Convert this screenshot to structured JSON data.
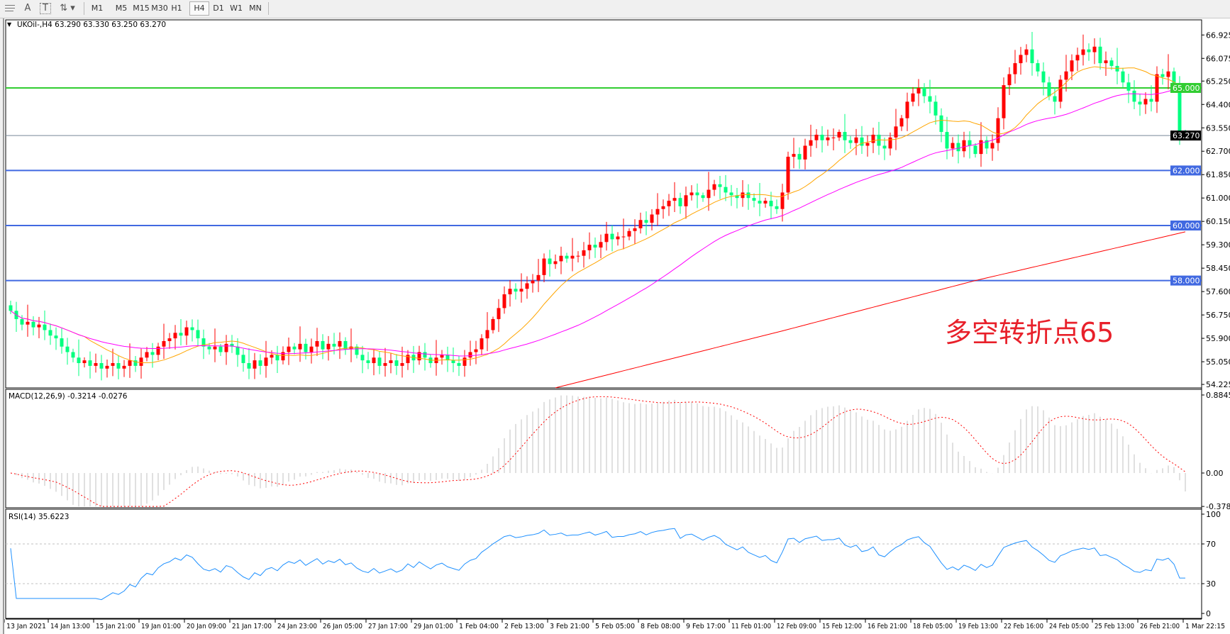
{
  "toolbar": {
    "icons": [
      "period-separators-icon",
      "text-label-icon",
      "text-box-icon",
      "arrows-dropdown-icon"
    ],
    "text_icon_label": "A",
    "textbox_icon_label": "T",
    "timeframes": [
      "M1",
      "M5",
      "M15",
      "M30",
      "H1",
      "H4",
      "D1",
      "W1",
      "MN"
    ],
    "selected": "H4"
  },
  "chart": {
    "header": "UKOil-,H4  63.290 63.330 63.250 63.270",
    "annotation": "多空转折点65",
    "annotation_color": "#e8202a",
    "macd_header": "MACD(12,26,9) -0.3214 -0.0276",
    "rsi_header": "RSI(14) 35.6223"
  },
  "colors": {
    "bull": "#ff0000",
    "bear": "#00ff7f",
    "ma_fast": "#ffa500",
    "ma_mid": "#ff00ff",
    "ma_slow": "#ff0000",
    "level_green": "#32cd32",
    "level_blue": "#4169e1",
    "price_line": "#778899",
    "macd_hist": "#c0c0c0",
    "macd_signal": "#ff0000",
    "rsi": "#1e90ff"
  },
  "chart_data": {
    "type": "candlestick",
    "symbol": "UKOil-",
    "timeframe": "H4",
    "close": [
      56.9,
      56.6,
      56.4,
      56.5,
      56.3,
      56.4,
      56.2,
      56.0,
      55.9,
      55.6,
      55.4,
      55.2,
      55.0,
      55.1,
      54.9,
      55.0,
      54.8,
      54.9,
      55.0,
      54.8,
      54.9,
      55.1,
      54.9,
      55.2,
      55.4,
      55.3,
      55.6,
      55.8,
      55.9,
      56.1,
      56.0,
      56.3,
      56.2,
      55.9,
      55.6,
      55.5,
      55.6,
      55.4,
      55.7,
      55.6,
      55.3,
      55.0,
      54.8,
      55.1,
      54.9,
      55.2,
      55.3,
      55.1,
      55.4,
      55.6,
      55.5,
      55.7,
      55.4,
      55.6,
      55.8,
      55.5,
      55.7,
      55.6,
      55.8,
      55.5,
      55.6,
      55.3,
      55.1,
      55.0,
      55.2,
      54.9,
      55.0,
      55.1,
      54.9,
      55.0,
      55.3,
      55.1,
      55.4,
      55.2,
      55.0,
      55.2,
      55.3,
      55.1,
      55.0,
      54.9,
      55.2,
      55.4,
      55.5,
      55.9,
      56.2,
      56.6,
      57.0,
      57.5,
      57.7,
      57.6,
      57.7,
      57.9,
      58.0,
      58.2,
      58.8,
      58.6,
      58.7,
      58.9,
      58.8,
      58.9,
      58.9,
      59.1,
      59.3,
      59.2,
      59.4,
      59.7,
      59.5,
      59.6,
      59.6,
      59.8,
      59.9,
      60.2,
      60.1,
      60.4,
      60.6,
      60.7,
      60.9,
      61.0,
      60.7,
      61.1,
      61.2,
      61.1,
      61.0,
      61.3,
      61.5,
      61.4,
      61.2,
      61.1,
      61.0,
      61.2,
      61.0,
      60.9,
      60.8,
      60.9,
      60.7,
      60.6,
      61.2,
      62.5,
      62.6,
      62.4,
      62.9,
      63.1,
      63.3,
      63.1,
      63.2,
      63.2,
      63.4,
      63.1,
      63.0,
      63.2,
      62.9,
      63.0,
      63.3,
      62.9,
      62.8,
      63.2,
      63.6,
      63.9,
      64.5,
      64.8,
      65.0,
      64.7,
      64.5,
      64.0,
      63.4,
      62.8,
      63.0,
      62.7,
      63.1,
      62.9,
      62.6,
      63.1,
      62.8,
      63.0,
      63.9,
      65.1,
      65.5,
      65.9,
      66.2,
      66.4,
      65.9,
      65.6,
      65.2,
      64.7,
      64.5,
      65.3,
      65.6,
      66.0,
      66.2,
      66.4,
      66.3,
      66.5,
      65.9,
      66.0,
      65.8,
      65.6,
      65.2,
      64.9,
      64.5,
      64.4,
      64.6,
      64.5,
      65.5,
      65.4,
      65.6,
      65.1,
      63.4,
      63.27
    ],
    "last_quote": {
      "open": 63.29,
      "high": 63.33,
      "low": 63.25,
      "close": 63.27
    },
    "ma_slow_points": [
      [
        96,
        54.1
      ],
      [
        136,
        56.17
      ],
      [
        170,
        58.0
      ],
      [
        207,
        59.77
      ]
    ],
    "horizontal_levels": [
      {
        "value": 65.0,
        "label": "65.000",
        "color": "#32cd32"
      },
      {
        "value": 62.0,
        "label": "62.000",
        "color": "#4169e1"
      },
      {
        "value": 60.0,
        "label": "60.000",
        "color": "#4169e1"
      },
      {
        "value": 58.0,
        "label": "58.000",
        "color": "#4169e1"
      }
    ],
    "current_price": {
      "value": 63.27,
      "label": "63.270"
    },
    "price_ticks": [
      "66.925",
      "66.075",
      "65.250",
      "64.400",
      "63.550",
      "62.700",
      "61.850",
      "61.000",
      "60.150",
      "59.300",
      "58.450",
      "57.600",
      "56.750",
      "55.900",
      "55.050",
      "54.225"
    ],
    "ylim": [
      54.1,
      67.47
    ],
    "date_ticks": [
      "13 Jan 2021",
      "14 Jan 13:00",
      "15 Jan 21:00",
      "19 Jan 01:00",
      "20 Jan 09:00",
      "21 Jan 17:00",
      "24 Jan 23:00",
      "26 Jan 05:00",
      "27 Jan 17:00",
      "29 Jan 01:00",
      "1 Feb 04:00",
      "2 Feb 13:00",
      "3 Feb 21:00",
      "5 Feb 05:00",
      "8 Feb 08:00",
      "9 Feb 17:00",
      "11 Feb 01:00",
      "12 Feb 09:00",
      "15 Feb 12:00",
      "16 Feb 21:00",
      "18 Feb 05:00",
      "19 Feb 13:00",
      "22 Feb 16:00",
      "24 Feb 05:00",
      "25 Feb 13:00",
      "26 Feb 21:00",
      "1 Mar 22:15"
    ],
    "macd": {
      "params": [
        12,
        26,
        9
      ],
      "value": -0.3214,
      "signal": -0.0276,
      "ticks": [
        "0.8845",
        "0.00",
        "-0.3788"
      ],
      "ylim": [
        -0.3788,
        0.8845
      ]
    },
    "rsi": {
      "period": 14,
      "value": 35.6223,
      "levels": [
        30,
        70
      ],
      "ticks": [
        "100",
        "70",
        "30",
        "0"
      ],
      "ylim": [
        0,
        100
      ]
    },
    "grid": false
  }
}
